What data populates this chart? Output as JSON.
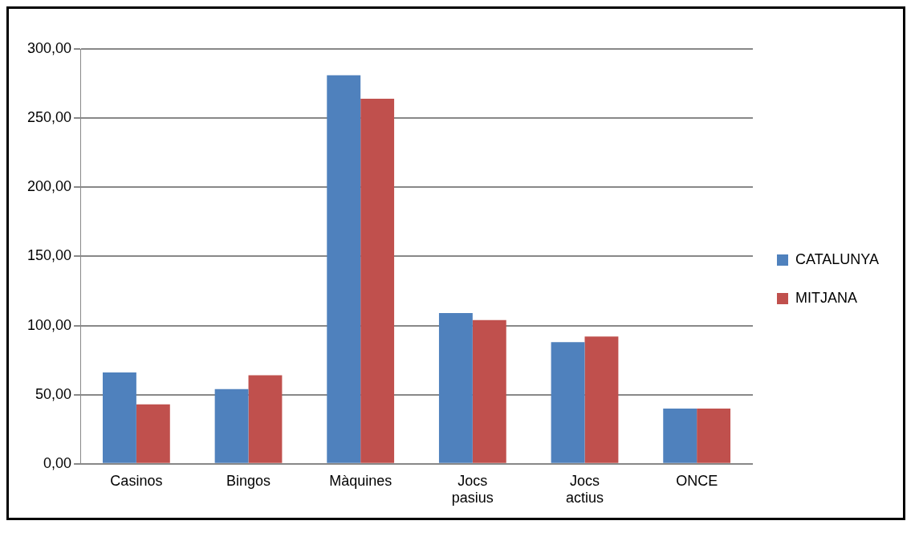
{
  "chart_data": {
    "type": "bar",
    "categories": [
      "Casinos",
      "Bingos",
      "Màquines",
      "Jocs pasius",
      "Jocs actius",
      "ONCE"
    ],
    "series": [
      {
        "name": "CATALUNYA",
        "color": "#4f81bd",
        "values": [
          66,
          54,
          281,
          109,
          88,
          40
        ]
      },
      {
        "name": "MITJANA",
        "color": "#c0504d",
        "values": [
          43,
          64,
          264,
          104,
          92,
          40
        ]
      }
    ],
    "ylim": [
      0,
      300
    ],
    "yticks": [
      {
        "value": 0,
        "label": "0,00"
      },
      {
        "value": 50,
        "label": "50,00"
      },
      {
        "value": 100,
        "label": "100,00"
      },
      {
        "value": 150,
        "label": "150,00"
      },
      {
        "value": 200,
        "label": "200,00"
      },
      {
        "value": 250,
        "label": "250,00"
      },
      {
        "value": 300,
        "label": "300,00"
      }
    ],
    "grid": "y",
    "legend": "right"
  }
}
